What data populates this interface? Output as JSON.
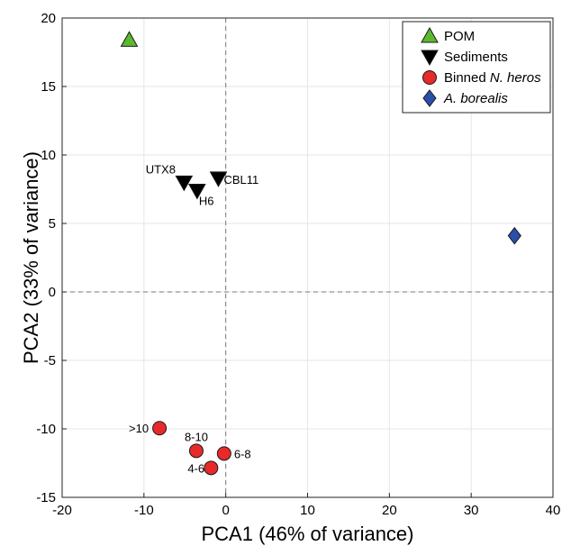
{
  "chart_data": {
    "type": "scatter",
    "xlabel": "PCA1 (46% of variance)",
    "ylabel": "PCA2 (33% of variance)",
    "xlim": [
      -20,
      40
    ],
    "ylim": [
      -15,
      20
    ],
    "xticks": [
      -20,
      -10,
      0,
      10,
      20,
      30,
      40
    ],
    "yticks": [
      -15,
      -10,
      -5,
      0,
      5,
      10,
      15,
      20
    ],
    "grid": true,
    "zero_lines": true,
    "legend_position": "top-right",
    "series": [
      {
        "name": "POM",
        "marker": "triangle-up",
        "color": "#5cb82e",
        "points": [
          {
            "x": -11.8,
            "y": 18.4,
            "label": ""
          }
        ]
      },
      {
        "name": "Sediments",
        "marker": "triangle-down",
        "color": "#000000",
        "points": [
          {
            "x": -5.1,
            "y": 8.0,
            "label": "UTX8"
          },
          {
            "x": -3.5,
            "y": 7.4,
            "label": "H6"
          },
          {
            "x": -0.9,
            "y": 8.3,
            "label": "CBL11"
          }
        ]
      },
      {
        "name": "Binned",
        "name_italic": "N. heros",
        "marker": "circle",
        "color": "#e62a2a",
        "points": [
          {
            "x": -8.1,
            "y": -9.95,
            "label": ">10"
          },
          {
            "x": -3.6,
            "y": -11.6,
            "label": "8-10"
          },
          {
            "x": -1.8,
            "y": -12.85,
            "label": "4-6"
          },
          {
            "x": -0.2,
            "y": -11.8,
            "label": "6-8"
          }
        ]
      },
      {
        "name": "",
        "name_italic": "A. borealis",
        "marker": "diamond",
        "color": "#2a4fa8",
        "points": [
          {
            "x": 35.3,
            "y": 4.1,
            "label": ""
          }
        ]
      }
    ]
  }
}
